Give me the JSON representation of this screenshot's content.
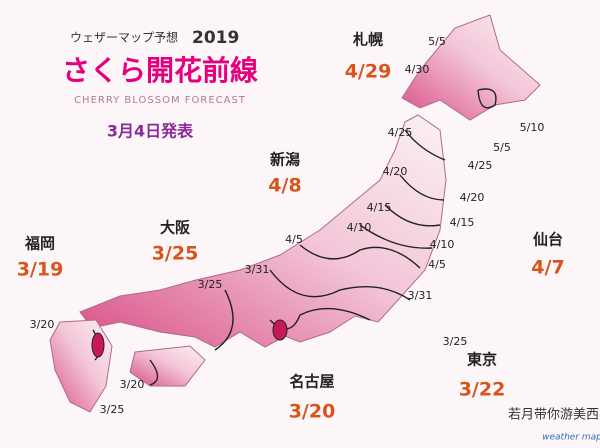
{
  "header": {
    "brand": "ウェザーマップ予想",
    "year": "2019",
    "title": "さくら開花前線",
    "subtitle": "CHERRY BLOSSOM FORECAST",
    "date": "3月4日発表"
  },
  "cities": [
    {
      "name": "札幌",
      "date": "4/29"
    },
    {
      "name": "新潟",
      "date": "4/8"
    },
    {
      "name": "大阪",
      "date": "3/25"
    },
    {
      "name": "福岡",
      "date": "3/19"
    },
    {
      "name": "仙台",
      "date": "4/7"
    },
    {
      "name": "東京",
      "date": "3/22"
    },
    {
      "name": "名古屋",
      "date": "3/20"
    }
  ],
  "isolines": [
    {
      "label": "5/5"
    },
    {
      "label": "4/30"
    },
    {
      "label": "5/10"
    },
    {
      "label": "5/5"
    },
    {
      "label": "4/25"
    },
    {
      "label": "4/25"
    },
    {
      "label": "4/20"
    },
    {
      "label": "4/20"
    },
    {
      "label": "4/15"
    },
    {
      "label": "4/15"
    },
    {
      "label": "4/10"
    },
    {
      "label": "4/10"
    },
    {
      "label": "4/5"
    },
    {
      "label": "4/5"
    },
    {
      "label": "3/31"
    },
    {
      "label": "3/31"
    },
    {
      "label": "3/25"
    },
    {
      "label": "3/25"
    },
    {
      "label": "3/20"
    },
    {
      "label": "3/20"
    },
    {
      "label": "3/25"
    }
  ],
  "footer": {
    "watermark": "若月带你游美西",
    "logo": "weather map"
  }
}
